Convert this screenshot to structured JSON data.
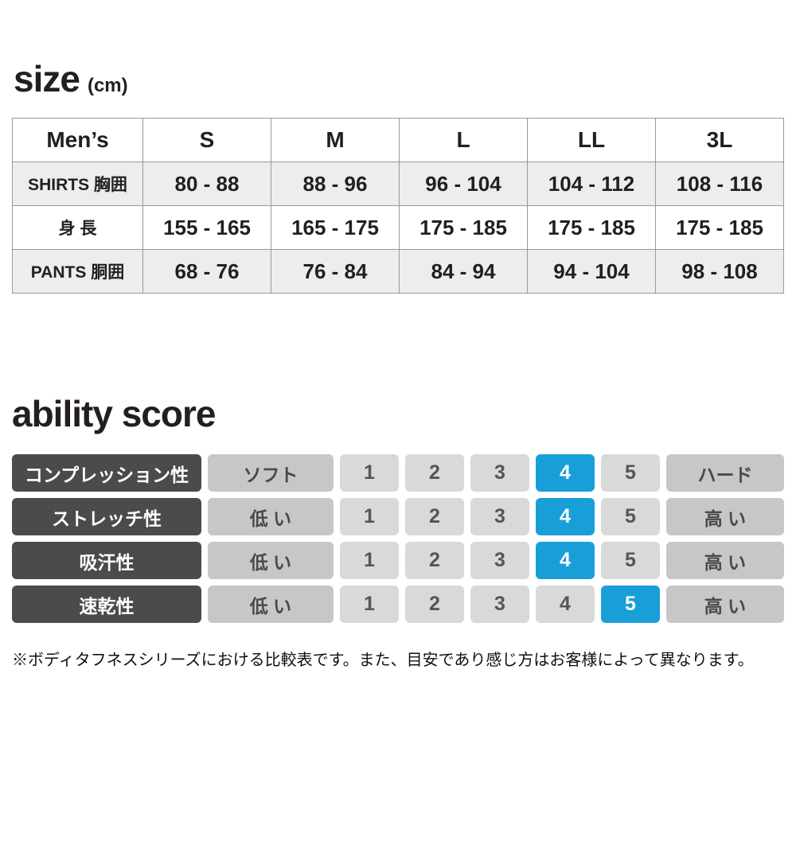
{
  "size_section": {
    "title": "size",
    "unit": "(cm)",
    "table": {
      "header": [
        "Men’s",
        "S",
        "M",
        "L",
        "LL",
        "3L"
      ],
      "rows": [
        {
          "label": "SHIRTS 胸囲",
          "values": [
            "80 - 88",
            "88 - 96",
            "96 - 104",
            "104 - 112",
            "108 - 116"
          ]
        },
        {
          "label": "身 長",
          "values": [
            "155 - 165",
            "165 - 175",
            "175 - 185",
            "175 - 185",
            "175 - 185"
          ]
        },
        {
          "label": "PANTS 胴囲",
          "values": [
            "68 - 76",
            "76 - 84",
            "84 - 94",
            "94 - 104",
            "98 - 108"
          ]
        }
      ]
    }
  },
  "ability": {
    "title": "ability score",
    "scale": [
      "1",
      "2",
      "3",
      "4",
      "5"
    ],
    "rows": [
      {
        "label": "コンプレッション性",
        "low": "ソフト",
        "high": "ハード",
        "score": 4
      },
      {
        "label": "ストレッチ性",
        "low": "低 い",
        "high": "高 い",
        "score": 4
      },
      {
        "label": "吸汗性",
        "low": "低 い",
        "high": "高 い",
        "score": 4
      },
      {
        "label": "速乾性",
        "low": "低 い",
        "high": "高 い",
        "score": 5
      }
    ],
    "colors": {
      "highlight": "#189fd8",
      "label_bg": "#4d4a4a",
      "qualifier_bg": "#c7c7c7",
      "number_bg": "#d9d9d9"
    }
  },
  "footnote": "※ボディタフネスシリーズにおける比較表です。また、目安であり感じ方はお客様によって異なります。",
  "chart_data": [
    {
      "type": "table",
      "title": "size (cm)",
      "columns": [
        "Men’s",
        "S",
        "M",
        "L",
        "LL",
        "3L"
      ],
      "rows": [
        [
          "SHIRTS 胸囲",
          "80 - 88",
          "88 - 96",
          "96 - 104",
          "104 - 112",
          "108 - 116"
        ],
        [
          "身 長",
          "155 - 165",
          "165 - 175",
          "175 - 185",
          "175 - 185",
          "175 - 185"
        ],
        [
          "PANTS 胴囲",
          "68 - 76",
          "76 - 84",
          "84 - 94",
          "94 - 104",
          "98 - 108"
        ]
      ]
    },
    {
      "type": "table",
      "title": "ability score",
      "scale": [
        1,
        2,
        3,
        4,
        5
      ],
      "rows": [
        {
          "label": "コンプレッション性",
          "low_label": "ソフト",
          "high_label": "ハード",
          "score": 4
        },
        {
          "label": "ストレッチ性",
          "low_label": "低 い",
          "high_label": "高 い",
          "score": 4
        },
        {
          "label": "吸汗性",
          "low_label": "低 い",
          "high_label": "高 い",
          "score": 4
        },
        {
          "label": "速乾性",
          "low_label": "低 い",
          "high_label": "高 い",
          "score": 5
        }
      ],
      "note": "※ボディタフネスシリーズにおける比較表です。また、目安であり感じ方はお客様によって異なります。"
    }
  ]
}
